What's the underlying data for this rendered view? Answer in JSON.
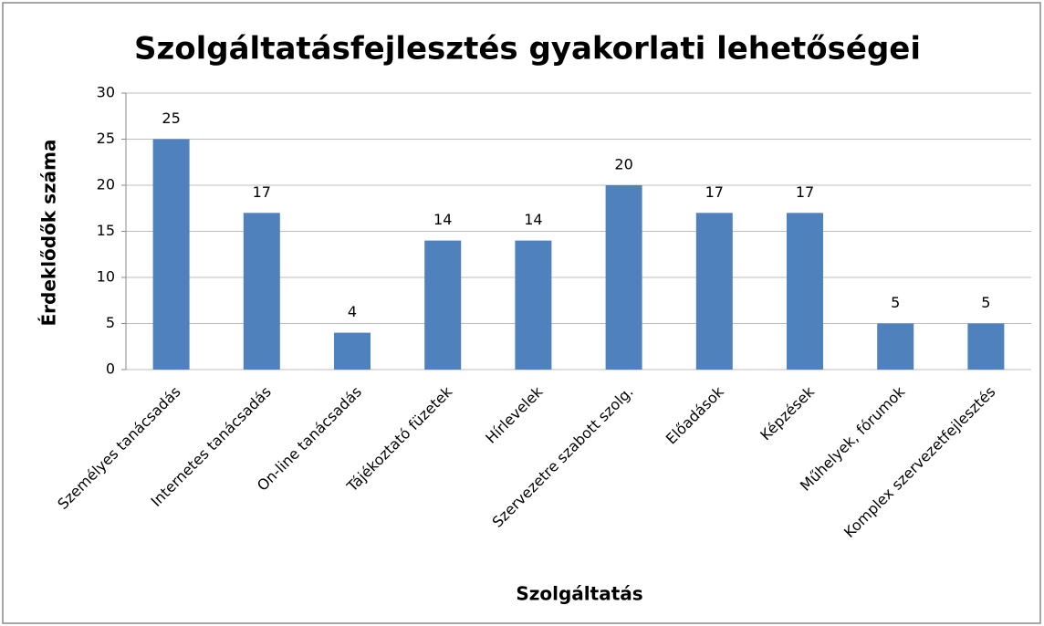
{
  "chart_data": {
    "type": "bar",
    "title": "Szolgáltatásfejlesztés gyakorlati lehetőségei",
    "x_label": "Szolgáltatás",
    "y_label": "Érdeklődők száma",
    "categories": [
      "Személyes tanácsadás",
      "Internetes tanácsadás",
      "On-line tanácsadás",
      "Tájékoztató füzetek",
      "Hírlevelek",
      "Szervezetre szabott szolg.",
      "Előadások",
      "Képzések",
      "Műhelyek, fórumok",
      "Komplex szervezetfejlesztés"
    ],
    "values": [
      25,
      17,
      4,
      14,
      14,
      20,
      17,
      17,
      5,
      5
    ],
    "color": "#4f81bd",
    "ylim": [
      0,
      30
    ],
    "yticks": [
      0,
      5,
      10,
      15,
      20,
      25,
      30
    ],
    "grid": true
  }
}
